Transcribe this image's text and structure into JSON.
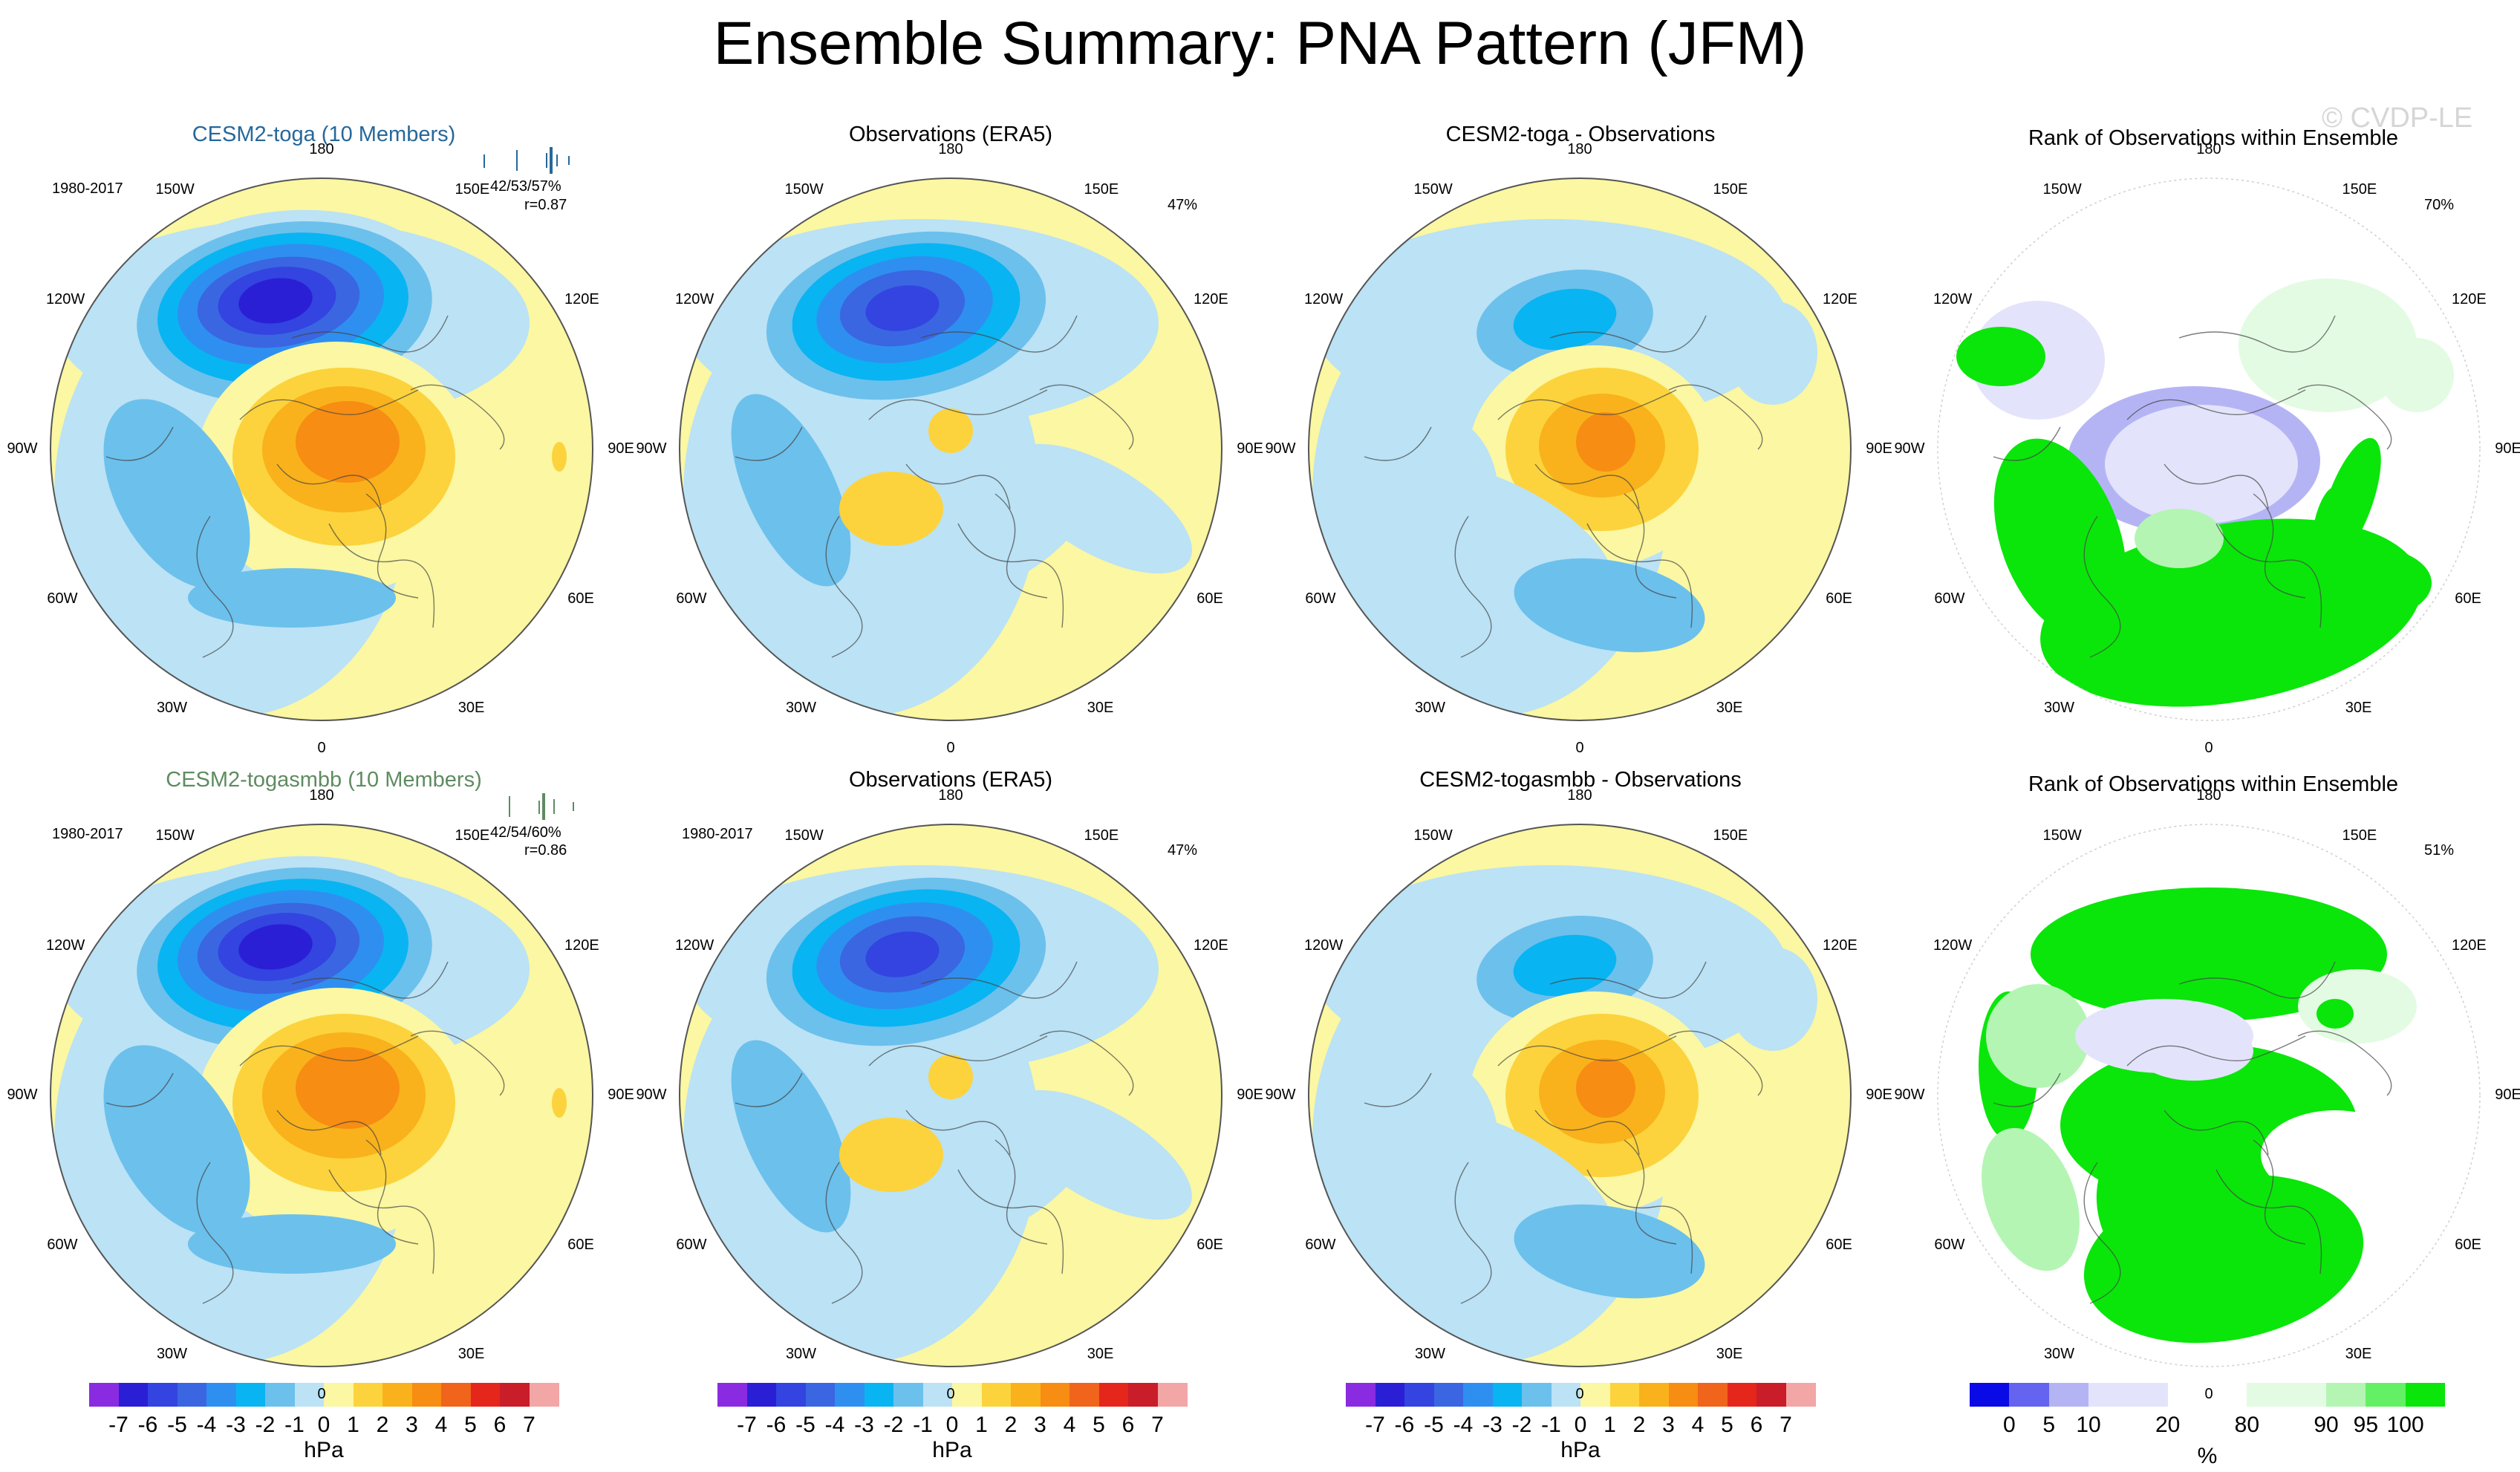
{
  "title": "Ensemble Summary: PNA Pattern (JFM)",
  "watermark": "© CVDP-LE",
  "chart_data": {
    "type": "heatmap",
    "projection": "north polar stereographic",
    "longitude_labels": [
      "180",
      "150E",
      "120E",
      "90E",
      "60E",
      "30E",
      "0",
      "30W",
      "60W",
      "90W",
      "120W",
      "150W"
    ],
    "rows": [
      {
        "model": "CESM2-toga (10 Members)",
        "model_color": "#27689a",
        "period": "1980-2017",
        "spread_text": "42/53/57%",
        "correlation": "r=0.87",
        "obs_title": "Observations (ERA5)",
        "obs_period": "",
        "obs_percent": "47%",
        "diff_title": "CESM2-toga - Observations",
        "rank_title": "Rank of Observations within Ensemble",
        "rank_percent": "70%"
      },
      {
        "model": "CESM2-togasmbb (10 Members)",
        "model_color": "#5e8c60",
        "period": "1980-2017",
        "spread_text": "42/54/60%",
        "correlation": "r=0.86",
        "obs_title": "Observations (ERA5)",
        "obs_period": "1980-2017",
        "obs_percent": "47%",
        "diff_title": "CESM2-togasmbb - Observations",
        "rank_title": "Rank of Observations within Ensemble",
        "rank_percent": "51%"
      }
    ],
    "slp_colorbar": {
      "levels": [
        "-7",
        "-6",
        "-5",
        "-4",
        "-3",
        "-2",
        "-1",
        "0",
        "1",
        "2",
        "3",
        "4",
        "5",
        "6",
        "7"
      ],
      "colors": [
        "#8a2be2",
        "#2b1fd6",
        "#3344e0",
        "#3a66e2",
        "#2f8ff0",
        "#09b4f2",
        "#6cc0ec",
        "#bbe2f5",
        "#fbf7a2",
        "#fcd33c",
        "#f9b21b",
        "#f78d12",
        "#f0641c",
        "#e5261b",
        "#c91d2a",
        "#f3a6a6"
      ],
      "unit": "hPa"
    },
    "rank_colorbar": {
      "levels": [
        "0",
        "5",
        "10",
        "20",
        "80",
        "90",
        "95",
        "100"
      ],
      "tick_positions": [
        1,
        2,
        3,
        5,
        7,
        9,
        10,
        11
      ],
      "colors": [
        "#0a0ae6",
        "#6464f0",
        "#b4b4f5",
        "#e3e3fb",
        "#e3e3fb",
        "#ffffff",
        "#ffffff",
        "#e3fbe3",
        "#e3fbe3",
        "#b4f5b4",
        "#64f064",
        "#0ae60a"
      ],
      "unit": "%"
    }
  }
}
